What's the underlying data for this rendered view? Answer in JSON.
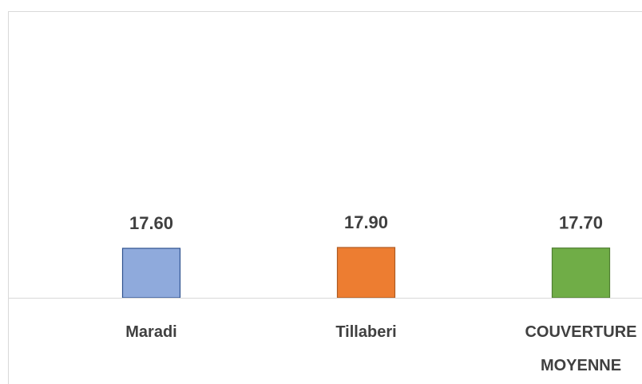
{
  "chart_data": {
    "type": "bar",
    "categories": [
      "Maradi",
      "Tillaberi",
      "COUVERTURE MOYENNE"
    ],
    "values": [
      17.6,
      17.9,
      17.7
    ],
    "value_labels": [
      "17.60",
      "17.90",
      "17.70"
    ],
    "colors": [
      "#8faadc",
      "#ed7d31",
      "#70ad47"
    ],
    "ylim": [
      0,
      100
    ]
  }
}
